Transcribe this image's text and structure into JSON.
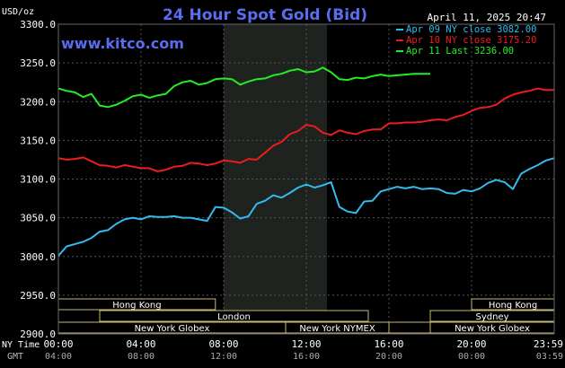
{
  "chart_data": {
    "type": "line",
    "title": "24 Hour Spot Gold (Bid)",
    "timestamp": "April 11, 2025 20:47",
    "watermark": "www.kitco.com",
    "ylabel": "USD/oz",
    "ylim": [
      2900,
      3300
    ],
    "yticks": [
      "3300.0",
      "3250.0",
      "3200.0",
      "3150.0",
      "3100.0",
      "3050.0",
      "3000.0",
      "2950.0",
      "2900.0"
    ],
    "y_values": [
      3300,
      3250,
      3200,
      3150,
      3100,
      3050,
      3000,
      2950,
      2900
    ],
    "xlim_hours": [
      0,
      24
    ],
    "x_axis_label_ny": "NY Time",
    "x_axis_label_gmt": "GMT",
    "xticks_ny": [
      "00:00",
      "04:00",
      "08:00",
      "12:00",
      "16:00",
      "20:00",
      "23:59"
    ],
    "xticks_gmt": [
      "04:00",
      "08:00",
      "12:00",
      "16:00",
      "20:00",
      "00:00",
      "03:59"
    ],
    "xtick_hours": [
      0,
      4,
      8,
      12,
      16,
      20,
      24
    ],
    "grid": true,
    "legend_position": "top-right",
    "highlight_hours": [
      8,
      13.0
    ],
    "series": [
      {
        "name": "Apr 09 NY close 3082.00",
        "color": "#33bbee",
        "points": [
          [
            0,
            3001
          ],
          [
            0.4,
            3013
          ],
          [
            0.8,
            3016
          ],
          [
            1.2,
            3019
          ],
          [
            1.6,
            3024
          ],
          [
            2,
            3032
          ],
          [
            2.4,
            3034
          ],
          [
            2.8,
            3042
          ],
          [
            3.2,
            3048
          ],
          [
            3.6,
            3050
          ],
          [
            4,
            3048
          ],
          [
            4.4,
            3052
          ],
          [
            4.8,
            3051
          ],
          [
            5.2,
            3051
          ],
          [
            5.6,
            3052
          ],
          [
            6,
            3050
          ],
          [
            6.4,
            3050
          ],
          [
            6.8,
            3048
          ],
          [
            7.2,
            3046
          ],
          [
            7.6,
            3064
          ],
          [
            8,
            3063
          ],
          [
            8.4,
            3057
          ],
          [
            8.8,
            3049
          ],
          [
            9.2,
            3052
          ],
          [
            9.6,
            3068
          ],
          [
            10,
            3072
          ],
          [
            10.4,
            3079
          ],
          [
            10.8,
            3076
          ],
          [
            11.2,
            3082
          ],
          [
            11.6,
            3089
          ],
          [
            12,
            3093
          ],
          [
            12.4,
            3089
          ],
          [
            12.8,
            3092
          ],
          [
            13.2,
            3096
          ],
          [
            13.6,
            3064
          ],
          [
            14,
            3058
          ],
          [
            14.4,
            3056
          ],
          [
            14.8,
            3071
          ],
          [
            15.2,
            3072
          ],
          [
            15.6,
            3084
          ],
          [
            16,
            3087
          ],
          [
            16.4,
            3090
          ],
          [
            16.8,
            3088
          ],
          [
            17.2,
            3090
          ],
          [
            17.6,
            3087
          ],
          [
            18,
            3088
          ],
          [
            18.4,
            3087
          ],
          [
            18.8,
            3082
          ],
          [
            19.2,
            3081
          ],
          [
            19.6,
            3086
          ],
          [
            20,
            3084
          ],
          [
            20.4,
            3088
          ],
          [
            20.8,
            3095
          ],
          [
            21.2,
            3099
          ],
          [
            21.6,
            3096
          ],
          [
            22,
            3087
          ],
          [
            22.4,
            3107
          ],
          [
            22.8,
            3113
          ],
          [
            23.2,
            3118
          ],
          [
            23.6,
            3124
          ],
          [
            24,
            3127
          ]
        ]
      },
      {
        "name": "Apr 10 NY close 3175.20",
        "color": "#ee1c1c",
        "points": [
          [
            0,
            3127
          ],
          [
            0.4,
            3125
          ],
          [
            0.8,
            3126
          ],
          [
            1.2,
            3128
          ],
          [
            1.6,
            3123
          ],
          [
            2,
            3118
          ],
          [
            2.4,
            3117
          ],
          [
            2.8,
            3115
          ],
          [
            3.2,
            3118
          ],
          [
            3.6,
            3116
          ],
          [
            4,
            3114
          ],
          [
            4.4,
            3114
          ],
          [
            4.8,
            3110
          ],
          [
            5.2,
            3112
          ],
          [
            5.6,
            3116
          ],
          [
            6,
            3117
          ],
          [
            6.4,
            3121
          ],
          [
            6.8,
            3120
          ],
          [
            7.2,
            3118
          ],
          [
            7.6,
            3120
          ],
          [
            8,
            3124
          ],
          [
            8.4,
            3123
          ],
          [
            8.8,
            3121
          ],
          [
            9.2,
            3126
          ],
          [
            9.6,
            3125
          ],
          [
            10,
            3134
          ],
          [
            10.4,
            3143
          ],
          [
            10.8,
            3148
          ],
          [
            11.2,
            3158
          ],
          [
            11.6,
            3162
          ],
          [
            12,
            3170
          ],
          [
            12.4,
            3168
          ],
          [
            12.8,
            3160
          ],
          [
            13.2,
            3157
          ],
          [
            13.6,
            3163
          ],
          [
            14,
            3160
          ],
          [
            14.4,
            3158
          ],
          [
            14.8,
            3162
          ],
          [
            15.2,
            3164
          ],
          [
            15.6,
            3164
          ],
          [
            16,
            3172
          ],
          [
            16.4,
            3172
          ],
          [
            16.8,
            3173
          ],
          [
            17.2,
            3173
          ],
          [
            17.6,
            3174
          ],
          [
            18,
            3176
          ],
          [
            18.4,
            3177
          ],
          [
            18.8,
            3176
          ],
          [
            19.2,
            3180
          ],
          [
            19.6,
            3183
          ],
          [
            20,
            3188
          ],
          [
            20.4,
            3192
          ],
          [
            20.8,
            3193
          ],
          [
            21.2,
            3196
          ],
          [
            21.6,
            3204
          ],
          [
            22,
            3209
          ],
          [
            22.4,
            3212
          ],
          [
            22.8,
            3214
          ],
          [
            23.2,
            3217
          ],
          [
            23.6,
            3215
          ],
          [
            24,
            3215
          ]
        ]
      },
      {
        "name": "Apr 11 Last 3236.00",
        "color": "#22ee22",
        "points": [
          [
            0,
            3217
          ],
          [
            0.4,
            3214
          ],
          [
            0.8,
            3212
          ],
          [
            1.2,
            3206
          ],
          [
            1.6,
            3210
          ],
          [
            2,
            3195
          ],
          [
            2.4,
            3193
          ],
          [
            2.8,
            3196
          ],
          [
            3.2,
            3201
          ],
          [
            3.6,
            3207
          ],
          [
            4,
            3209
          ],
          [
            4.4,
            3205
          ],
          [
            4.8,
            3208
          ],
          [
            5.2,
            3210
          ],
          [
            5.6,
            3220
          ],
          [
            6,
            3225
          ],
          [
            6.4,
            3227
          ],
          [
            6.8,
            3222
          ],
          [
            7.2,
            3224
          ],
          [
            7.6,
            3229
          ],
          [
            8,
            3230
          ],
          [
            8.4,
            3229
          ],
          [
            8.8,
            3222
          ],
          [
            9.2,
            3226
          ],
          [
            9.6,
            3229
          ],
          [
            10,
            3230
          ],
          [
            10.4,
            3234
          ],
          [
            10.8,
            3236
          ],
          [
            11.2,
            3240
          ],
          [
            11.6,
            3242
          ],
          [
            12,
            3238
          ],
          [
            12.4,
            3239
          ],
          [
            12.8,
            3244
          ],
          [
            13.2,
            3238
          ],
          [
            13.6,
            3229
          ],
          [
            14,
            3228
          ],
          [
            14.4,
            3231
          ],
          [
            14.8,
            3230
          ],
          [
            15.2,
            3233
          ],
          [
            15.6,
            3235
          ],
          [
            16,
            3233
          ],
          [
            16.4,
            3234
          ],
          [
            16.8,
            3235
          ],
          [
            17.2,
            3236
          ],
          [
            17.6,
            3236
          ],
          [
            18,
            3236
          ]
        ]
      }
    ],
    "sessions": [
      {
        "label": "Hong Kong",
        "start": 0,
        "end": 7.6,
        "row": 0
      },
      {
        "label": "London",
        "start": 2.0,
        "end": 15.0,
        "row": 1
      },
      {
        "label": "New York Globex",
        "start": 0,
        "end": 11.0,
        "row": 2
      },
      {
        "label": "New York NYMEX",
        "start": 11.0,
        "end": 16.0,
        "row": 2
      },
      {
        "label": "NY Globex",
        "start": 16.0,
        "end": 24,
        "row": 2
      },
      {
        "label": "Hong Kong",
        "start": 20.0,
        "end": 24,
        "row": 0
      },
      {
        "label": "Sydney",
        "start": 18.0,
        "end": 24,
        "row": 1
      },
      {
        "label": "New York Globex",
        "start": 18.0,
        "end": 24,
        "row": 2
      }
    ]
  }
}
